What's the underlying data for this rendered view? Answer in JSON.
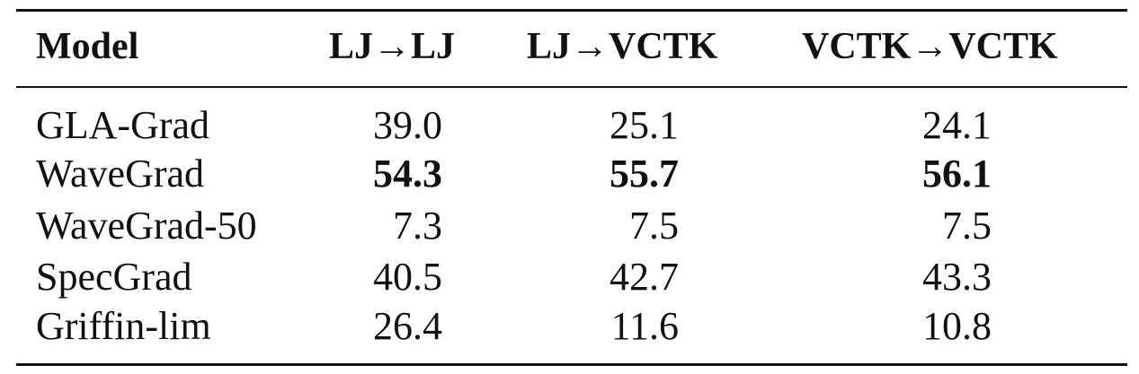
{
  "table": {
    "headers": [
      "Model",
      "LJ→LJ",
      "LJ→VCTK",
      "VCTK→VCTK"
    ],
    "rows": [
      {
        "model": "GLA-Grad",
        "values": [
          "39.0",
          "25.1",
          "24.1"
        ]
      },
      {
        "model": "WaveGrad",
        "values": [
          "54.3",
          "55.7",
          "56.1"
        ]
      },
      {
        "model": "WaveGrad-50",
        "values": [
          "7.3",
          "7.5",
          "7.5"
        ]
      },
      {
        "model": "SpecGrad",
        "values": [
          "40.5",
          "42.7",
          "43.3"
        ]
      },
      {
        "model": "Griffin-lim",
        "values": [
          "26.4",
          "11.6",
          "10.8"
        ]
      }
    ]
  }
}
